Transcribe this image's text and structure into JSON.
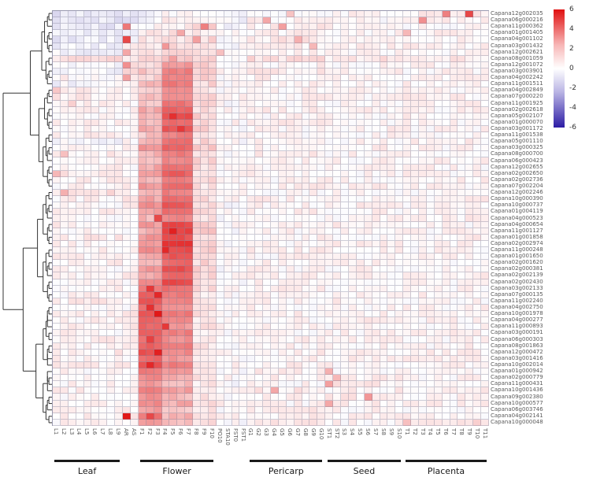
{
  "figure": {
    "title": "",
    "background": "#ffffff"
  },
  "legend": {
    "ticks": [
      6,
      4,
      2,
      0,
      -2,
      -4,
      -6
    ],
    "top_color": "#e01010",
    "mid_color": "#ffffff",
    "bottom_color": "#2c1ca5"
  },
  "chart_data": {
    "type": "heatmap",
    "title": "",
    "xlabel": "",
    "ylabel": "",
    "value_range": [
      -6,
      6
    ],
    "colormap": {
      "negative": "#2c1ca5",
      "zero": "#ffffff",
      "positive": "#e01010"
    },
    "legend_ticks": [
      6,
      4,
      2,
      0,
      -2,
      -4,
      -6
    ],
    "columns": [
      "L1",
      "L2",
      "L3",
      "L4",
      "L5",
      "L6",
      "L7",
      "L8",
      "L9",
      "AR",
      "AS",
      "F1",
      "F2",
      "F3",
      "F4",
      "F5",
      "F6",
      "F7",
      "F8",
      "F9",
      "F10",
      "PO10",
      "STA10",
      "FST0",
      "FST1",
      "G1",
      "G2",
      "G3",
      "G4",
      "G5",
      "G6",
      "G7",
      "G8",
      "G9",
      "G10",
      "ST1",
      "ST2",
      "S3",
      "S4",
      "S5",
      "S6",
      "S7",
      "S8",
      "S9",
      "S10",
      "T1",
      "T2",
      "T3",
      "T4",
      "T5",
      "T6",
      "T7",
      "T8",
      "T9",
      "T10",
      "T11"
    ],
    "column_groups": [
      {
        "label": "Leaf",
        "start": 0,
        "end": 8
      },
      {
        "label": "Flower",
        "start": 11,
        "end": 20
      },
      {
        "label": "Pericarp",
        "start": 25,
        "end": 34
      },
      {
        "label": "Seed",
        "start": 35,
        "end": 44
      },
      {
        "label": "Placenta",
        "start": 45,
        "end": 55
      }
    ],
    "value_group_spans": [
      [
        0,
        8
      ],
      [
        9,
        10
      ],
      [
        11,
        13
      ],
      [
        14,
        17
      ],
      [
        18,
        20
      ],
      [
        21,
        24
      ],
      [
        25,
        34
      ],
      [
        35,
        44
      ],
      [
        45,
        55
      ]
    ],
    "rows": [
      {
        "label": "Capana12g002035",
        "v": [
          -0.6,
          -0.5,
          -0.2,
          0.2,
          0.4,
          -0.3,
          0.2,
          0.2,
          0.5
        ],
        "o": {
          "30": 1.5,
          "50": 3.2,
          "53": 4.6
        }
      },
      {
        "label": "Capana06g000216",
        "v": [
          -0.7,
          -0.6,
          -0.3,
          0.3,
          0.3,
          -0.2,
          0.3,
          0.1,
          0.4
        ],
        "o": {
          "27": 2.2,
          "47": 2.8
        }
      },
      {
        "label": "Capana11g000362",
        "v": [
          -0.6,
          -0.4,
          0.2,
          0.5,
          1.2,
          -0.2,
          0.4,
          0.2,
          0.2
        ],
        "o": {
          "9": 3.4,
          "19": 3.2,
          "29": 2.4
        }
      },
      {
        "label": "Capana01g001405",
        "v": [
          -0.5,
          -0.3,
          0.4,
          0.8,
          0.6,
          0.0,
          0.3,
          0.3,
          0.3
        ],
        "o": {
          "16": 2.2,
          "45": 1.8
        }
      },
      {
        "label": "Capana04g001102",
        "v": [
          -0.5,
          -0.2,
          0.5,
          0.6,
          1.0,
          -0.2,
          0.5,
          0.2,
          0.2
        ],
        "o": {
          "9": 4.6,
          "18": 2.4,
          "31": 2.0
        }
      },
      {
        "label": "Capana03g001432",
        "v": [
          -0.4,
          0.2,
          0.6,
          1.0,
          0.8,
          0.0,
          0.4,
          0.3,
          0.3
        ],
        "o": {
          "14": 2.6,
          "33": 1.8
        }
      },
      {
        "label": "Capana12g002621",
        "v": [
          -0.3,
          0.4,
          0.5,
          1.2,
          0.6,
          -0.2,
          0.3,
          0.2,
          0.2
        ],
        "o": {
          "9": 2.2,
          "21": 1.6
        }
      },
      {
        "label": "Capana08g001059",
        "v": [
          0.8,
          0.6,
          0.8,
          1.4,
          1.0,
          0.2,
          0.8,
          0.6,
          0.5
        ],
        "o": {
          "15": 2.4
        }
      },
      {
        "label": "Capana12g001072",
        "v": [
          -0.3,
          1.2,
          1.0,
          2.6,
          1.2,
          0.0,
          0.3,
          0.2,
          0.2
        ],
        "o": {
          "9": 2.8
        }
      },
      {
        "label": "Capana03g003901",
        "v": [
          -0.2,
          0.8,
          1.4,
          3.2,
          1.4,
          0.2,
          0.4,
          0.3,
          0.2
        ],
        "o": {}
      },
      {
        "label": "Capana04g002242",
        "v": [
          0.2,
          1.0,
          1.2,
          3.0,
          1.2,
          0.0,
          0.3,
          0.2,
          0.3
        ],
        "o": {
          "9": 2.4
        }
      },
      {
        "label": "Capana11g001511",
        "v": [
          -0.2,
          0.6,
          1.6,
          3.4,
          1.0,
          0.2,
          0.3,
          0.2,
          0.2
        ],
        "o": {}
      },
      {
        "label": "Capana04g002849",
        "v": [
          0.3,
          0.4,
          1.2,
          2.8,
          0.8,
          0.0,
          0.2,
          0.3,
          0.2
        ],
        "o": {
          "0": 1.4
        }
      },
      {
        "label": "Capana07g000220",
        "v": [
          0.4,
          0.3,
          1.8,
          3.0,
          1.0,
          0.2,
          0.3,
          0.2,
          0.3
        ],
        "o": {}
      },
      {
        "label": "Capana11g001925",
        "v": [
          0.2,
          0.2,
          1.4,
          3.4,
          1.2,
          0.0,
          0.2,
          0.2,
          0.2
        ],
        "o": {
          "2": 1.2
        }
      },
      {
        "label": "Capana02g002618",
        "v": [
          0.3,
          0.2,
          2.2,
          4.0,
          1.0,
          0.2,
          0.3,
          0.3,
          0.2
        ],
        "o": {}
      },
      {
        "label": "Capana05g002107",
        "v": [
          0.2,
          0.4,
          1.8,
          4.4,
          1.2,
          0.0,
          0.2,
          0.2,
          0.3
        ],
        "o": {
          "15": 5.2
        }
      },
      {
        "label": "Capana01g000070",
        "v": [
          0.4,
          0.2,
          1.6,
          3.8,
          0.8,
          0.2,
          0.3,
          0.2,
          0.2
        ],
        "o": {}
      },
      {
        "label": "Capana03g001172",
        "v": [
          0.2,
          0.3,
          2.0,
          4.2,
          1.0,
          0.0,
          0.2,
          0.3,
          0.2
        ],
        "o": {
          "16": 5.0
        }
      },
      {
        "label": "Capana11g001538",
        "v": [
          0.3,
          0.2,
          1.4,
          3.2,
          0.8,
          0.2,
          0.2,
          0.2,
          0.2
        ],
        "o": {}
      },
      {
        "label": "Capana05g001110",
        "v": [
          -0.2,
          0.2,
          1.8,
          3.6,
          1.0,
          0.0,
          0.3,
          0.2,
          0.3
        ],
        "o": {}
      },
      {
        "label": "Capana03g000325",
        "v": [
          0.2,
          0.4,
          2.4,
          3.8,
          1.2,
          0.2,
          0.2,
          0.3,
          0.2
        ],
        "o": {}
      },
      {
        "label": "Capana08g000700",
        "v": [
          0.4,
          0.2,
          2.0,
          3.4,
          0.8,
          0.0,
          0.3,
          0.2,
          0.2
        ],
        "o": {
          "1": 1.6
        }
      },
      {
        "label": "Capana06g000423",
        "v": [
          0.2,
          0.3,
          1.6,
          3.0,
          1.0,
          0.2,
          0.2,
          0.2,
          0.3
        ],
        "o": {}
      },
      {
        "label": "Capana12g002655",
        "v": [
          0.3,
          0.2,
          2.2,
          3.6,
          0.8,
          0.0,
          0.2,
          0.3,
          0.2
        ],
        "o": {}
      },
      {
        "label": "Capana02g002650",
        "v": [
          0.6,
          0.4,
          2.6,
          4.0,
          1.0,
          0.2,
          0.3,
          0.2,
          0.2
        ],
        "o": {
          "0": 1.8
        }
      },
      {
        "label": "Capana02g002736",
        "v": [
          0.4,
          0.2,
          2.0,
          3.4,
          1.2,
          0.0,
          0.2,
          0.2,
          0.3
        ],
        "o": {}
      },
      {
        "label": "Capana07g002204",
        "v": [
          0.2,
          0.3,
          2.4,
          3.8,
          0.8,
          0.2,
          0.3,
          0.3,
          0.2
        ],
        "o": {}
      },
      {
        "label": "Capana12g002246",
        "v": [
          0.8,
          0.2,
          1.8,
          3.2,
          1.0,
          0.0,
          0.2,
          0.2,
          0.2
        ],
        "o": {
          "1": 2.0
        }
      },
      {
        "label": "Capana10g000390",
        "v": [
          0.3,
          0.4,
          2.2,
          3.6,
          0.8,
          0.2,
          0.3,
          0.2,
          0.3
        ],
        "o": {}
      },
      {
        "label": "Capana10g000737",
        "v": [
          0.2,
          0.2,
          2.8,
          4.2,
          1.0,
          0.0,
          0.2,
          0.3,
          0.2
        ],
        "o": {}
      },
      {
        "label": "Capana01g004119",
        "v": [
          0.4,
          0.3,
          2.2,
          3.6,
          1.2,
          0.2,
          0.3,
          0.2,
          0.2
        ],
        "o": {}
      },
      {
        "label": "Capana04g000523",
        "v": [
          0.2,
          0.2,
          1.8,
          3.0,
          0.8,
          0.0,
          0.2,
          0.2,
          0.3
        ],
        "o": {
          "13": 4.6
        }
      },
      {
        "label": "Capana04g000654",
        "v": [
          0.3,
          0.4,
          2.4,
          4.6,
          1.0,
          0.2,
          0.3,
          0.3,
          0.2
        ],
        "o": {}
      },
      {
        "label": "Capana11g001127",
        "v": [
          0.2,
          0.2,
          2.0,
          4.8,
          1.2,
          0.0,
          0.2,
          0.2,
          0.2
        ],
        "o": {
          "15": 5.6
        }
      },
      {
        "label": "Capana01g001858",
        "v": [
          0.4,
          0.3,
          2.6,
          4.4,
          0.8,
          0.2,
          0.3,
          0.2,
          0.3
        ],
        "o": {}
      },
      {
        "label": "Capana02g002974",
        "v": [
          0.2,
          0.2,
          2.2,
          5.0,
          1.0,
          0.0,
          0.2,
          0.3,
          0.2
        ],
        "o": {}
      },
      {
        "label": "Capana11g000248",
        "v": [
          0.3,
          0.4,
          2.8,
          4.6,
          1.2,
          0.2,
          0.3,
          0.2,
          0.2
        ],
        "o": {
          "14": 5.4
        }
      },
      {
        "label": "Capana01g001650",
        "v": [
          0.2,
          0.2,
          2.4,
          4.2,
          0.8,
          0.0,
          0.2,
          0.2,
          0.3
        ],
        "o": {}
      },
      {
        "label": "Capana02g001620",
        "v": [
          0.4,
          0.3,
          2.0,
          3.8,
          1.0,
          0.2,
          0.3,
          0.3,
          0.2
        ],
        "o": {}
      },
      {
        "label": "Capana02g000381",
        "v": [
          0.2,
          0.2,
          2.6,
          4.4,
          1.2,
          0.0,
          0.2,
          0.2,
          0.2
        ],
        "o": {}
      },
      {
        "label": "Capana02g002139",
        "v": [
          0.3,
          0.4,
          2.2,
          4.0,
          0.8,
          0.2,
          0.3,
          0.2,
          0.3
        ],
        "o": {}
      },
      {
        "label": "Capana02g002430",
        "v": [
          0.2,
          0.2,
          2.8,
          4.6,
          1.0,
          0.0,
          0.2,
          0.3,
          0.2
        ],
        "o": {}
      },
      {
        "label": "Capana03g002133",
        "v": [
          0.3,
          0.3,
          3.4,
          3.6,
          0.8,
          0.2,
          0.3,
          0.2,
          0.2
        ],
        "o": {
          "12": 5.0
        }
      },
      {
        "label": "Capana07g000135",
        "v": [
          0.2,
          0.2,
          3.8,
          3.2,
          0.6,
          0.0,
          0.2,
          0.2,
          0.3
        ],
        "o": {
          "13": 5.4
        }
      },
      {
        "label": "Capana11g002240",
        "v": [
          0.4,
          0.3,
          4.2,
          3.0,
          0.8,
          0.2,
          0.3,
          0.3,
          0.2
        ],
        "o": {}
      },
      {
        "label": "Capana04g002750",
        "v": [
          0.2,
          0.2,
          3.6,
          2.8,
          0.6,
          0.0,
          0.2,
          0.2,
          0.2
        ],
        "o": {
          "12": 5.2
        }
      },
      {
        "label": "Capana10g001978",
        "v": [
          0.3,
          0.4,
          4.4,
          3.4,
          0.8,
          0.2,
          0.3,
          0.2,
          0.3
        ],
        "o": {
          "13": 5.8
        }
      },
      {
        "label": "Capana04g000277",
        "v": [
          0.2,
          0.2,
          4.0,
          3.0,
          0.6,
          0.0,
          0.2,
          0.3,
          0.2
        ],
        "o": {}
      },
      {
        "label": "Capana11g000893",
        "v": [
          0.4,
          0.3,
          3.8,
          2.6,
          0.8,
          0.2,
          0.3,
          0.2,
          0.2
        ],
        "o": {
          "14": 5.0
        }
      },
      {
        "label": "Capana03g000191",
        "v": [
          0.2,
          0.2,
          4.2,
          3.2,
          0.6,
          0.0,
          0.2,
          0.2,
          0.3
        ],
        "o": {}
      },
      {
        "label": "Capana06g000303",
        "v": [
          0.3,
          0.4,
          3.6,
          2.8,
          0.8,
          0.2,
          0.3,
          0.3,
          0.2
        ],
        "o": {
          "12": 4.8
        }
      },
      {
        "label": "Capana08g001863",
        "v": [
          0.2,
          0.2,
          4.0,
          3.4,
          0.6,
          0.0,
          0.2,
          0.2,
          0.2
        ],
        "o": {}
      },
      {
        "label": "Capana12g000472",
        "v": [
          0.4,
          0.3,
          4.4,
          3.0,
          0.8,
          0.2,
          0.3,
          0.2,
          0.3
        ],
        "o": {
          "13": 5.6
        }
      },
      {
        "label": "Capana03g001416",
        "v": [
          0.2,
          0.2,
          3.8,
          2.6,
          0.6,
          0.0,
          0.2,
          0.3,
          0.2
        ],
        "o": {}
      },
      {
        "label": "Capana10g002014",
        "v": [
          0.3,
          0.4,
          4.2,
          3.2,
          0.8,
          0.2,
          0.3,
          0.2,
          0.2
        ],
        "o": {
          "12": 5.4
        }
      },
      {
        "label": "Capana01g000942",
        "v": [
          0.2,
          0.2,
          3.4,
          2.4,
          0.6,
          0.0,
          0.4,
          0.2,
          0.3
        ],
        "o": {
          "35": 2.0
        }
      },
      {
        "label": "Capana02g000779",
        "v": [
          0.4,
          0.3,
          3.0,
          2.0,
          0.8,
          0.2,
          0.3,
          0.4,
          0.2
        ],
        "o": {
          "36": 1.8
        }
      },
      {
        "label": "Capana11g000431",
        "v": [
          0.2,
          0.2,
          2.6,
          1.8,
          0.6,
          0.0,
          0.2,
          0.5,
          0.2
        ],
        "o": {
          "35": 2.4
        }
      },
      {
        "label": "Capana10g001436",
        "v": [
          0.3,
          0.4,
          3.2,
          2.2,
          0.8,
          0.2,
          0.5,
          0.3,
          0.3
        ],
        "o": {
          "28": 2.2
        }
      },
      {
        "label": "Capana09g002380",
        "v": [
          0.2,
          0.2,
          2.8,
          1.8,
          0.6,
          0.0,
          0.3,
          0.4,
          0.2
        ],
        "o": {
          "40": 2.6
        }
      },
      {
        "label": "Capana10g000577",
        "v": [
          0.4,
          0.3,
          3.0,
          2.0,
          0.8,
          0.2,
          0.2,
          0.3,
          0.3
        ],
        "o": {
          "35": 2.2
        }
      },
      {
        "label": "Capana06g003746",
        "v": [
          0.2,
          0.2,
          2.4,
          1.6,
          0.6,
          0.0,
          0.4,
          0.2,
          0.2
        ],
        "o": {}
      },
      {
        "label": "Capana04g002141",
        "v": [
          0.3,
          0.3,
          3.4,
          1.8,
          0.6,
          0.2,
          0.3,
          0.3,
          0.3
        ],
        "o": {
          "9": 5.8,
          "12": 4.6
        }
      },
      {
        "label": "Capana10g000048",
        "v": [
          0.2,
          0.4,
          2.6,
          1.4,
          0.8,
          0.0,
          0.5,
          0.2,
          0.8
        ],
        "o": {
          "45": 1.6
        }
      }
    ]
  },
  "layout_labels": {
    "group_leaf": "Leaf",
    "group_flower": "Flower",
    "group_pericarp": "Pericarp",
    "group_seed": "Seed",
    "group_placenta": "Placenta"
  }
}
